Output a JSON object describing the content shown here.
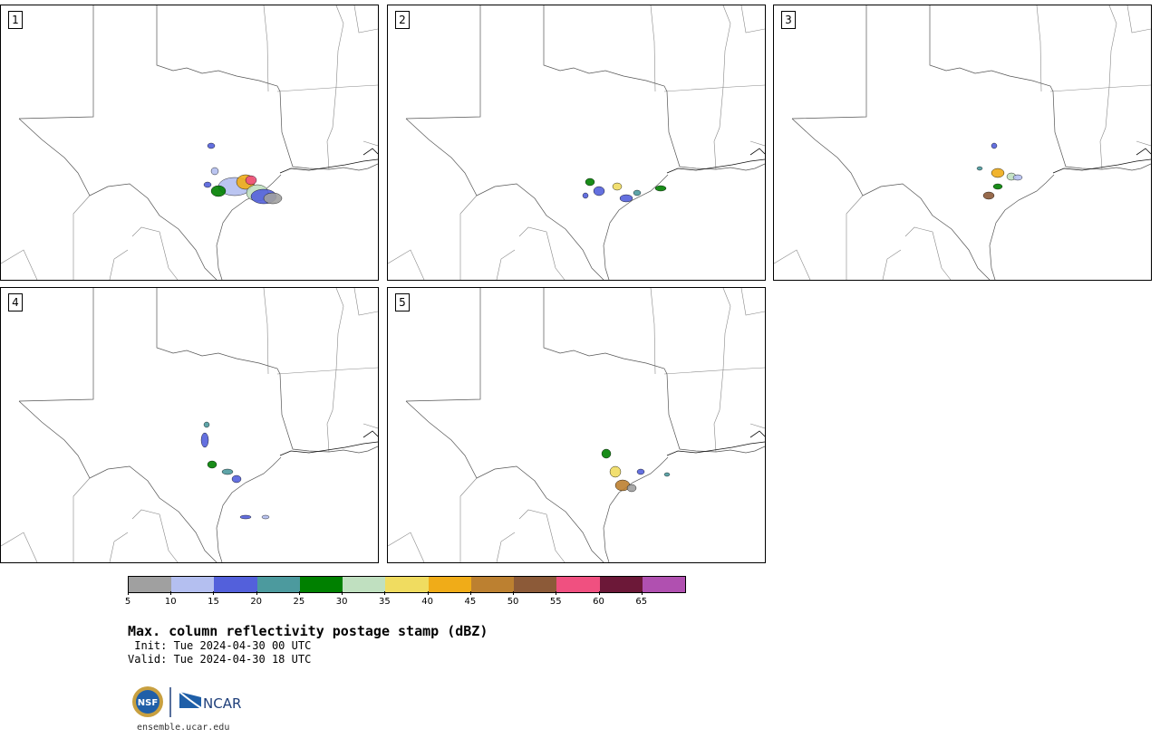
{
  "panels": [
    {
      "label": "1"
    },
    {
      "label": "2"
    },
    {
      "label": "3"
    },
    {
      "label": "4"
    },
    {
      "label": "5"
    }
  ],
  "colorbar": {
    "title": "Max. column reflectivity postage stamp (dBZ)",
    "unit": "dBZ",
    "ticks": [
      "5",
      "10",
      "15",
      "20",
      "25",
      "30",
      "35",
      "40",
      "45",
      "50",
      "55",
      "60",
      "65"
    ],
    "colors": [
      "#a0a0a0",
      "#b4bff0",
      "#5360db",
      "#4c9a9e",
      "#008000",
      "#c0e0c0",
      "#f0dc60",
      "#f0ac18",
      "#bc8030",
      "#8c5a38",
      "#f05080",
      "#6c1838",
      "#b050b0"
    ]
  },
  "init_text": " Init: Tue 2024-04-30 00 UTC",
  "valid_text": "Valid: Tue 2024-04-30 18 UTC",
  "logos": {
    "nsf": "NSF",
    "ncar": "NCAR"
  },
  "site": "ensemble.ucar.edu"
}
